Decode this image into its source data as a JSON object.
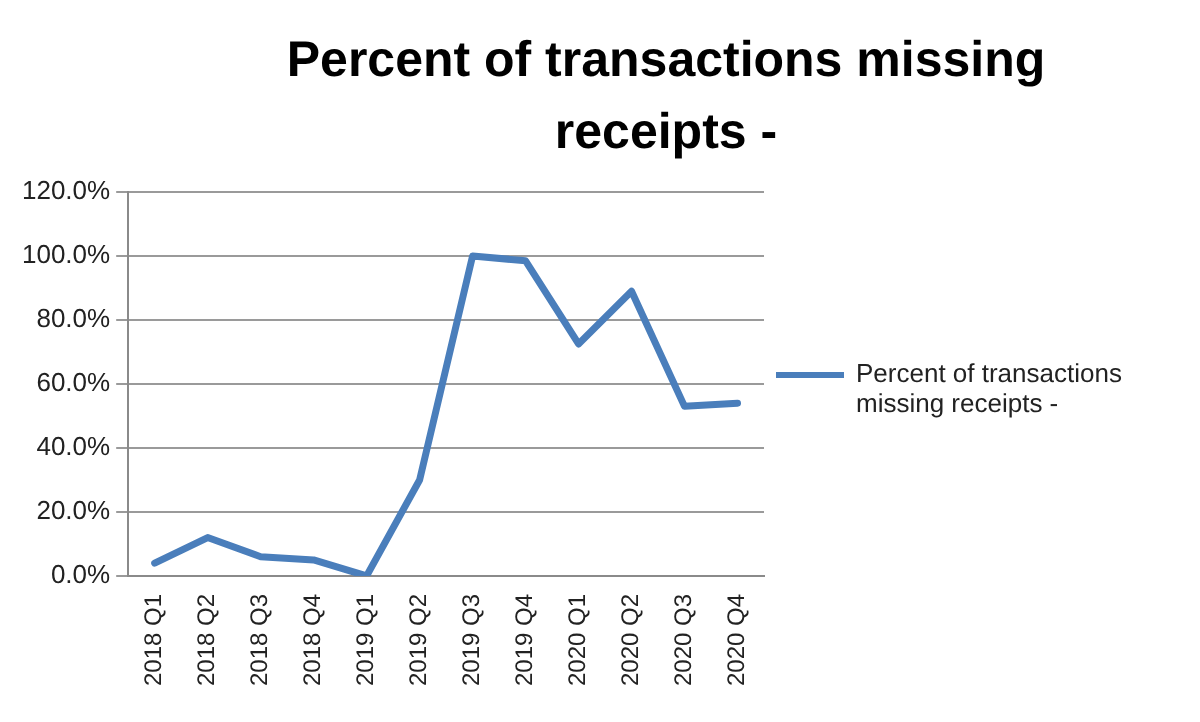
{
  "chart_data": {
    "type": "line",
    "title": "Percent of transactions missing receipts  -",
    "categories": [
      "2018 Q1",
      "2018 Q2",
      "2018 Q3",
      "2018 Q4",
      "2019 Q1",
      "2019 Q2",
      "2019 Q3",
      "2019 Q4",
      "2020 Q1",
      "2020 Q2",
      "2020 Q3",
      "2020 Q4"
    ],
    "series": [
      {
        "name": "Percent of transactions missing receipts  -",
        "color": "#4a7ebb",
        "values": [
          4,
          12,
          6,
          5,
          0,
          30,
          100,
          98.5,
          72.5,
          89,
          53,
          54
        ]
      }
    ],
    "ylim": [
      0,
      120
    ],
    "yticks": [
      {
        "value": 0,
        "label": "0.0%"
      },
      {
        "value": 20,
        "label": "20.0%"
      },
      {
        "value": 40,
        "label": "40.0%"
      },
      {
        "value": 60,
        "label": "60.0%"
      },
      {
        "value": 80,
        "label": "80.0%"
      },
      {
        "value": 100,
        "label": "100.0%"
      },
      {
        "value": 120,
        "label": "120.0%"
      }
    ],
    "grid": "y",
    "legend": "right",
    "marker": "none",
    "line_style": "solid"
  }
}
